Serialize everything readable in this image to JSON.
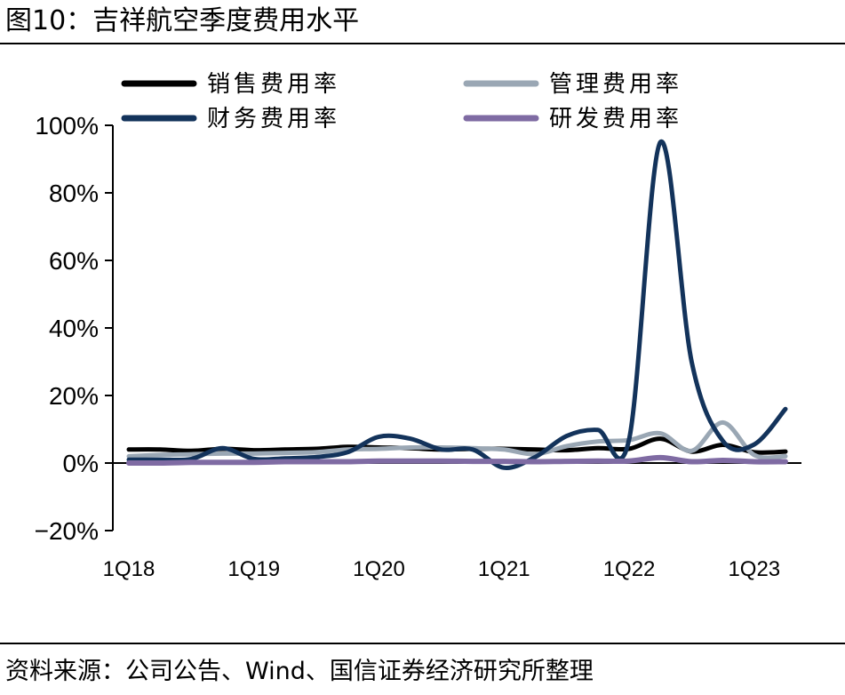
{
  "figure": {
    "title": "图10：吉祥航空季度费用水平",
    "source": "资料来源：公司公告、Wind、国信证券经济研究所整理"
  },
  "chart_data": {
    "type": "line",
    "title": "",
    "xlabel": "",
    "ylabel": "",
    "ylim": [
      -20,
      100
    ],
    "yticks": [
      -20,
      0,
      20,
      40,
      60,
      80,
      100
    ],
    "ytick_labels": [
      "−20%",
      "0%",
      "20%",
      "40%",
      "60%",
      "80%",
      "100%"
    ],
    "xtick_labels": [
      "1Q18",
      "1Q19",
      "1Q20",
      "1Q21",
      "1Q22",
      "1Q23"
    ],
    "x": [
      "1Q18",
      "2Q18",
      "3Q18",
      "4Q18",
      "1Q19",
      "2Q19",
      "3Q19",
      "4Q19",
      "1Q20",
      "2Q20",
      "3Q20",
      "4Q20",
      "1Q21",
      "2Q21",
      "3Q21",
      "4Q21",
      "1Q22",
      "2Q22",
      "3Q22",
      "4Q22",
      "1Q23",
      "2Q23"
    ],
    "grid": false,
    "legend_position": "top",
    "series": [
      {
        "name": "销售费用率",
        "color": "#000000",
        "values": [
          4.0,
          4.0,
          3.6,
          4.2,
          3.8,
          4.0,
          4.2,
          4.8,
          4.6,
          4.4,
          4.0,
          4.2,
          4.2,
          4.0,
          3.8,
          4.4,
          4.2,
          7.2,
          3.4,
          5.4,
          3.2,
          3.4
        ]
      },
      {
        "name": "管理费用率",
        "color": "#9aa7b4",
        "values": [
          2.0,
          2.4,
          2.6,
          2.8,
          2.8,
          3.0,
          3.2,
          4.0,
          4.2,
          4.6,
          4.6,
          4.4,
          4.0,
          2.6,
          5.0,
          6.4,
          6.8,
          8.8,
          3.6,
          12.0,
          2.4,
          2.0
        ]
      },
      {
        "name": "财务费用率",
        "color": "#13335b",
        "values": [
          1.0,
          1.0,
          1.2,
          4.4,
          1.2,
          1.4,
          1.8,
          3.2,
          7.8,
          7.2,
          4.0,
          4.0,
          -1.4,
          1.8,
          8.0,
          9.8,
          7.0,
          95.0,
          30.0,
          6.5,
          5.5,
          16.0
        ]
      },
      {
        "name": "研发费用率",
        "color": "#7f6ba3",
        "values": [
          0.0,
          0.0,
          0.2,
          0.2,
          0.2,
          0.4,
          0.4,
          0.4,
          0.6,
          0.6,
          0.6,
          0.5,
          0.5,
          0.4,
          0.5,
          0.6,
          0.6,
          1.6,
          0.4,
          0.8,
          0.4,
          0.4
        ]
      }
    ]
  }
}
